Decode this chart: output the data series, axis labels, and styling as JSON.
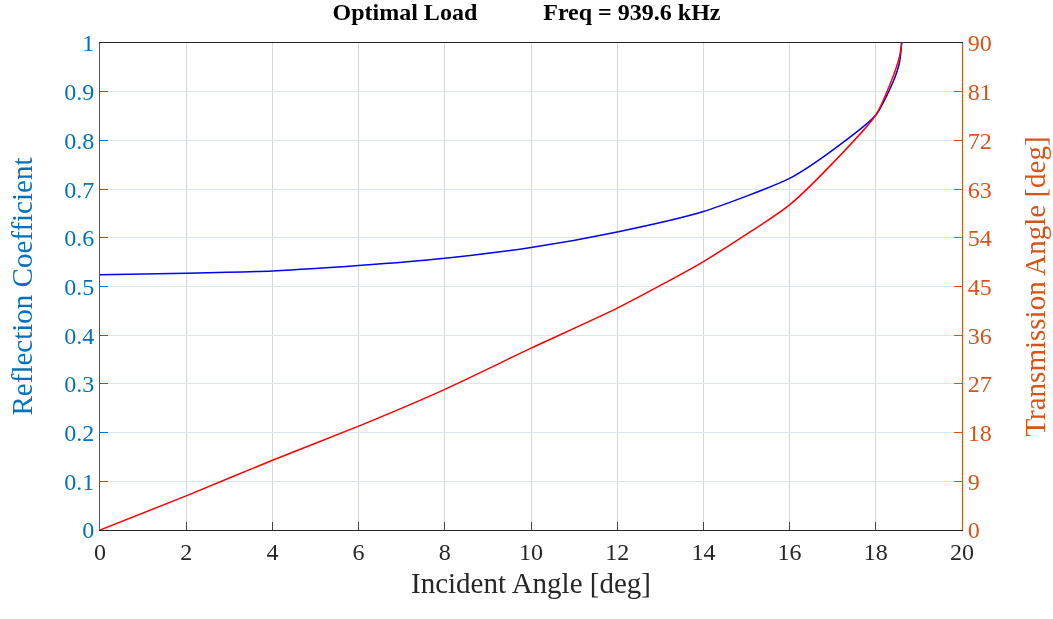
{
  "chart_data": {
    "type": "line",
    "title": "Optimal Load           Freq = 939.6 kHz",
    "xlabel": "Incident Angle [deg]",
    "ylabel": "Reflection Coefficient",
    "y2label": "Transmission Angle [deg]",
    "series": [
      {
        "color": "#0000ff",
        "x": [
          0,
          2,
          4,
          6,
          8,
          10,
          12,
          14,
          16,
          17,
          18,
          18.4,
          18.55,
          18.6
        ],
        "values": [
          0.524,
          0.527,
          0.532,
          0.543,
          0.558,
          0.58,
          0.612,
          0.654,
          0.722,
          0.78,
          0.852,
          0.92,
          0.96,
          1.0
        ]
      },
      {
        "color": "#ff0000",
        "axis": "y2",
        "x": [
          0,
          2,
          4,
          6,
          8,
          10,
          12,
          14,
          16,
          17,
          18,
          18.4,
          18.55,
          18.6
        ],
        "values": [
          0,
          6.3,
          12.9,
          19.2,
          26,
          33.6,
          41,
          49.6,
          60.1,
          67.8,
          76.7,
          83.8,
          87.5,
          90
        ]
      }
    ],
    "xlim": [
      0,
      20
    ],
    "xticks": [
      0,
      2,
      4,
      6,
      8,
      10,
      12,
      14,
      16,
      18,
      20
    ],
    "ylim": [
      0,
      1
    ],
    "yticks": [
      0,
      0.1,
      0.2,
      0.3,
      0.4,
      0.5,
      0.6,
      0.7,
      0.8,
      0.9,
      1
    ],
    "y2lim": [
      0,
      90
    ],
    "y2ticks": [
      0,
      9,
      18,
      27,
      36,
      45,
      54,
      63,
      72,
      81,
      90
    ],
    "grid": true,
    "line_style": "solid",
    "marker": "none"
  }
}
